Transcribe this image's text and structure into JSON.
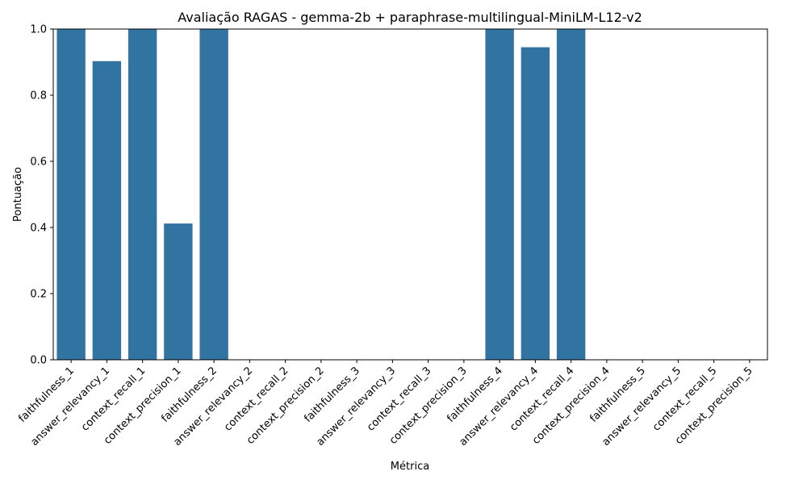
{
  "chart_data": {
    "type": "bar",
    "title": "Avaliação RAGAS - gemma-2b + paraphrase-multilingual-MiniLM-L12-v2",
    "xlabel": "Métrica",
    "ylabel": "Pontuação",
    "ylim": [
      0,
      1.0
    ],
    "yticks": [
      "0.0",
      "0.2",
      "0.4",
      "0.6",
      "0.8",
      "1.0"
    ],
    "grid": false,
    "bar_color": "#3274a1",
    "categories": [
      "faithfulness_1",
      "answer_relevancy_1",
      "context_recall_1",
      "context_precision_1",
      "faithfulness_2",
      "answer_relevancy_2",
      "context_recall_2",
      "context_precision_2",
      "faithfulness_3",
      "answer_relevancy_3",
      "context_recall_3",
      "context_precision_3",
      "faithfulness_4",
      "answer_relevancy_4",
      "context_recall_4",
      "context_precision_4",
      "faithfulness_5",
      "answer_relevancy_5",
      "context_recall_5",
      "context_precision_5"
    ],
    "values": [
      1.0,
      0.903,
      1.0,
      0.412,
      1.0,
      0,
      0,
      0,
      0,
      0,
      0,
      0,
      1.0,
      0.945,
      1.0,
      0,
      0,
      0,
      0,
      0
    ]
  }
}
